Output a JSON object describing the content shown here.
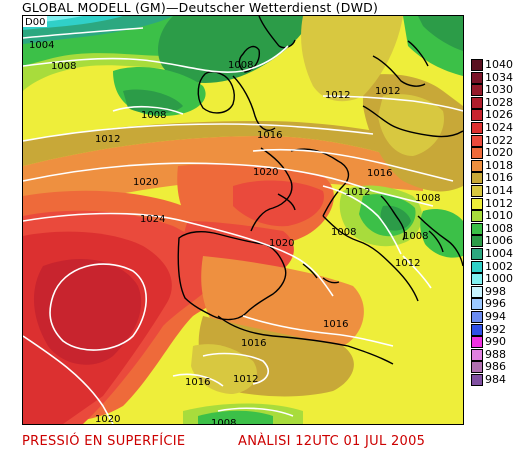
{
  "title": "GLOBAL MODELL (GM)—Deutscher Wetterdienst (DWD)",
  "footer": {
    "left": "PRESSIÓ EN SUPERFÍCIE",
    "right": "ANÀLISI 12UTC 01 JUL 2005"
  },
  "corner_label": "D00",
  "legend": [
    {
      "label": "1040",
      "color": "#5a1020"
    },
    {
      "label": "1034",
      "color": "#7a1428"
    },
    {
      "label": "1030",
      "color": "#951a2a"
    },
    {
      "label": "1028",
      "color": "#b01e2c"
    },
    {
      "label": "1026",
      "color": "#c8242e"
    },
    {
      "label": "1024",
      "color": "#dc3030"
    },
    {
      "label": "1022",
      "color": "#ea4a3c"
    },
    {
      "label": "1020",
      "color": "#ee6a3a"
    },
    {
      "label": "1018",
      "color": "#ee9040"
    },
    {
      "label": "1016",
      "color": "#c8a838"
    },
    {
      "label": "1014",
      "color": "#d8c840"
    },
    {
      "label": "1012",
      "color": "#eeee3a"
    },
    {
      "label": "1010",
      "color": "#a8dc3c"
    },
    {
      "label": "1008",
      "color": "#3cc048"
    },
    {
      "label": "1006",
      "color": "#2c9c48"
    },
    {
      "label": "1004",
      "color": "#2ca880"
    },
    {
      "label": "1002",
      "color": "#30d0c8"
    },
    {
      "label": "1000",
      "color": "#80f0f0"
    },
    {
      "label": "998",
      "color": "#c8f4ff"
    },
    {
      "label": "996",
      "color": "#9cc8ff"
    },
    {
      "label": "994",
      "color": "#6c8cf0"
    },
    {
      "label": "992",
      "color": "#3050e8"
    },
    {
      "label": "990",
      "color": "#f030e0"
    },
    {
      "label": "988",
      "color": "#e080e0"
    },
    {
      "label": "986",
      "color": "#b070b0"
    },
    {
      "label": "984",
      "color": "#8050a0"
    }
  ],
  "isobar_labels": [
    {
      "text": "1004"
    },
    {
      "text": "1008"
    },
    {
      "text": "1008"
    },
    {
      "text": "1008"
    },
    {
      "text": "1012"
    },
    {
      "text": "1012"
    },
    {
      "text": "1012"
    },
    {
      "text": "1016"
    },
    {
      "text": "1020"
    },
    {
      "text": "1020"
    },
    {
      "text": "1024"
    },
    {
      "text": "1016"
    },
    {
      "text": "1012"
    },
    {
      "text": "1008"
    },
    {
      "text": "1008"
    },
    {
      "text": "1008"
    },
    {
      "text": "1020"
    },
    {
      "text": "1012"
    },
    {
      "text": "1016"
    },
    {
      "text": "1016"
    },
    {
      "text": "1016"
    },
    {
      "text": "1012"
    },
    {
      "text": "1020"
    },
    {
      "text": "1008"
    }
  ],
  "colors": {
    "land_outline": "#000000",
    "isobar": "#ffffff",
    "footer_text": "#cc0000"
  }
}
